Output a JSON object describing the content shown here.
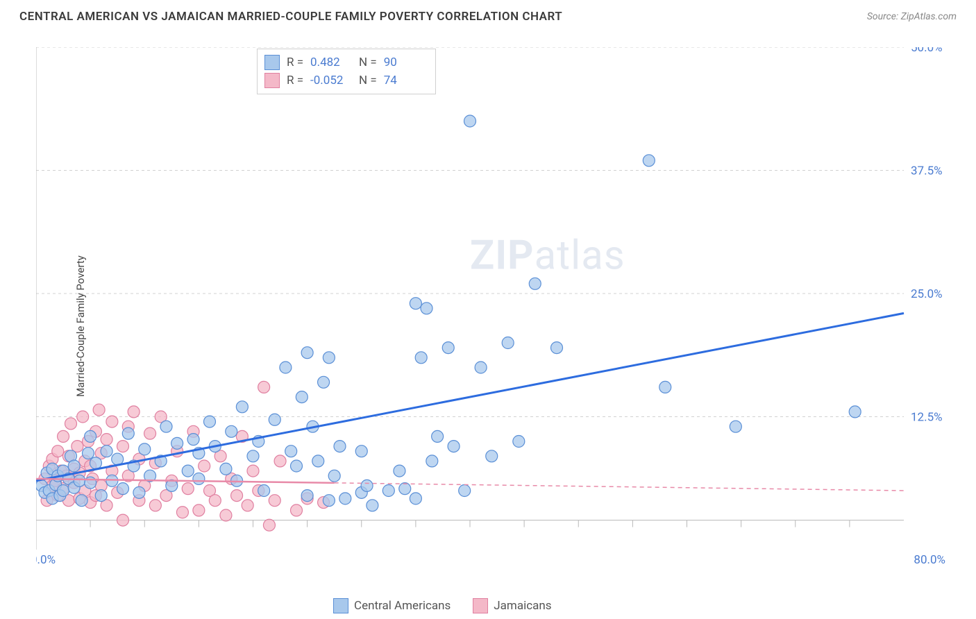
{
  "header": {
    "title": "CENTRAL AMERICAN VS JAMAICAN MARRIED-COUPLE FAMILY POVERTY CORRELATION CHART",
    "source_prefix": "Source: ",
    "source_name": "ZipAtlas.com"
  },
  "chart": {
    "type": "scatter",
    "ylabel": "Married-Couple Family Poverty",
    "xlim": [
      0,
      80
    ],
    "ylim": [
      0,
      50
    ],
    "x_axis_baseline": 2.0,
    "y_gridlines": [
      12.5,
      25.0,
      37.5,
      50.0
    ],
    "y_tick_labels": [
      "12.5%",
      "25.0%",
      "37.5%",
      "50.0%"
    ],
    "x_tick_positions": [
      5,
      10,
      15,
      20,
      25,
      30,
      35,
      40,
      45,
      50,
      55,
      60,
      65,
      70,
      75
    ],
    "x_left_label": "0.0%",
    "x_right_label": "80.0%",
    "background_color": "#ffffff",
    "grid_color": "#d0d0d0",
    "axis_color": "#b8b8b8",
    "label_color": "#4a7bd0",
    "marker_radius": 8.5,
    "watermark_zip": "ZIP",
    "watermark_atlas": "atlas",
    "series": {
      "central_americans": {
        "label": "Central Americans",
        "fill": "#a8c8ec",
        "stroke": "#5a8fd6",
        "r_value": "0.482",
        "n_value": "90",
        "trend_color": "#2d6cdf",
        "trend_start": [
          0,
          6.0
        ],
        "trend_end": [
          80,
          23.0
        ],
        "points": [
          [
            0.5,
            5.5
          ],
          [
            0.8,
            4.8
          ],
          [
            1.0,
            6.8
          ],
          [
            1.2,
            5.0
          ],
          [
            1.5,
            7.2
          ],
          [
            1.5,
            4.2
          ],
          [
            1.8,
            5.6
          ],
          [
            2.0,
            6.5
          ],
          [
            2.2,
            4.5
          ],
          [
            2.5,
            7.0
          ],
          [
            2.5,
            5.0
          ],
          [
            3.0,
            6.2
          ],
          [
            3.2,
            8.5
          ],
          [
            3.5,
            5.3
          ],
          [
            3.5,
            7.5
          ],
          [
            4.0,
            6.0
          ],
          [
            4.2,
            4.0
          ],
          [
            4.8,
            8.8
          ],
          [
            5.0,
            5.8
          ],
          [
            5.0,
            10.5
          ],
          [
            5.5,
            7.8
          ],
          [
            6.0,
            4.5
          ],
          [
            6.5,
            9.0
          ],
          [
            7.0,
            6.0
          ],
          [
            7.5,
            8.2
          ],
          [
            8.0,
            5.2
          ],
          [
            8.5,
            10.8
          ],
          [
            9.0,
            7.5
          ],
          [
            9.5,
            4.8
          ],
          [
            10.0,
            9.2
          ],
          [
            10.5,
            6.5
          ],
          [
            11.5,
            8.0
          ],
          [
            12.0,
            11.5
          ],
          [
            12.5,
            5.5
          ],
          [
            13.0,
            9.8
          ],
          [
            14.0,
            7.0
          ],
          [
            14.5,
            10.2
          ],
          [
            15.0,
            6.2
          ],
          [
            15.0,
            8.8
          ],
          [
            16.0,
            12.0
          ],
          [
            16.5,
            9.5
          ],
          [
            17.5,
            7.2
          ],
          [
            18.0,
            11.0
          ],
          [
            18.5,
            6.0
          ],
          [
            19.0,
            13.5
          ],
          [
            20.0,
            8.5
          ],
          [
            20.5,
            10.0
          ],
          [
            21.0,
            5.0
          ],
          [
            22.0,
            12.2
          ],
          [
            23.0,
            17.5
          ],
          [
            23.5,
            9.0
          ],
          [
            24.0,
            7.5
          ],
          [
            24.5,
            14.5
          ],
          [
            25.0,
            19.0
          ],
          [
            25.5,
            11.5
          ],
          [
            25.0,
            4.5
          ],
          [
            26.0,
            8.0
          ],
          [
            26.5,
            16.0
          ],
          [
            27.0,
            18.5
          ],
          [
            27.0,
            4.0
          ],
          [
            27.5,
            6.5
          ],
          [
            28.0,
            9.5
          ],
          [
            28.5,
            4.2
          ],
          [
            30.0,
            4.8
          ],
          [
            30.0,
            9.0
          ],
          [
            30.5,
            5.5
          ],
          [
            31.0,
            3.5
          ],
          [
            32.5,
            5.0
          ],
          [
            33.5,
            7.0
          ],
          [
            34.0,
            5.2
          ],
          [
            35.0,
            24.0
          ],
          [
            35.0,
            4.2
          ],
          [
            35.5,
            18.5
          ],
          [
            36.0,
            23.5
          ],
          [
            36.5,
            8.0
          ],
          [
            37.0,
            10.5
          ],
          [
            38.0,
            19.5
          ],
          [
            38.5,
            9.5
          ],
          [
            39.5,
            5.0
          ],
          [
            40.0,
            42.5
          ],
          [
            41.0,
            17.5
          ],
          [
            42.0,
            8.5
          ],
          [
            43.5,
            20.0
          ],
          [
            44.5,
            10.0
          ],
          [
            46.0,
            26.0
          ],
          [
            48.0,
            19.5
          ],
          [
            56.5,
            38.5
          ],
          [
            58.0,
            15.5
          ],
          [
            64.5,
            11.5
          ],
          [
            75.5,
            13.0
          ]
        ]
      },
      "jamaicans": {
        "label": "Jamaicans",
        "fill": "#f4b8c8",
        "stroke": "#e07fa0",
        "r_value": "-0.052",
        "n_value": "74",
        "trend_color": "#e88aa8",
        "trend_start": [
          0,
          6.2
        ],
        "trend_solid_end_x": 27.5,
        "trend_end": [
          80,
          5.0
        ],
        "points": [
          [
            0.8,
            6.2
          ],
          [
            1.0,
            4.0
          ],
          [
            1.2,
            7.5
          ],
          [
            1.5,
            5.5
          ],
          [
            1.5,
            8.2
          ],
          [
            1.8,
            6.0
          ],
          [
            2.0,
            4.5
          ],
          [
            2.0,
            9.0
          ],
          [
            2.3,
            7.0
          ],
          [
            2.5,
            5.2
          ],
          [
            2.5,
            10.5
          ],
          [
            2.8,
            6.5
          ],
          [
            3.0,
            4.0
          ],
          [
            3.0,
            8.5
          ],
          [
            3.2,
            11.8
          ],
          [
            3.5,
            5.8
          ],
          [
            3.5,
            7.2
          ],
          [
            3.8,
            9.5
          ],
          [
            4.0,
            4.2
          ],
          [
            4.0,
            6.8
          ],
          [
            4.3,
            12.5
          ],
          [
            4.5,
            5.0
          ],
          [
            4.5,
            8.0
          ],
          [
            4.8,
            10.0
          ],
          [
            5.0,
            3.8
          ],
          [
            5.0,
            7.5
          ],
          [
            5.2,
            6.2
          ],
          [
            5.5,
            11.0
          ],
          [
            5.5,
            4.5
          ],
          [
            5.8,
            13.2
          ],
          [
            6.0,
            8.8
          ],
          [
            6.0,
            5.5
          ],
          [
            6.5,
            3.5
          ],
          [
            6.5,
            10.2
          ],
          [
            7.0,
            7.0
          ],
          [
            7.0,
            12.0
          ],
          [
            7.5,
            4.8
          ],
          [
            8.0,
            9.5
          ],
          [
            8.0,
            2.0
          ],
          [
            8.5,
            6.5
          ],
          [
            8.5,
            11.5
          ],
          [
            9.0,
            13.0
          ],
          [
            9.5,
            4.0
          ],
          [
            9.5,
            8.2
          ],
          [
            10.0,
            5.5
          ],
          [
            10.5,
            10.8
          ],
          [
            11.0,
            3.5
          ],
          [
            11.0,
            7.8
          ],
          [
            11.5,
            12.5
          ],
          [
            12.0,
            4.5
          ],
          [
            12.5,
            6.0
          ],
          [
            13.0,
            9.0
          ],
          [
            13.5,
            2.8
          ],
          [
            14.0,
            5.2
          ],
          [
            14.5,
            11.0
          ],
          [
            15.0,
            3.0
          ],
          [
            15.5,
            7.5
          ],
          [
            16.0,
            5.0
          ],
          [
            16.5,
            4.0
          ],
          [
            17.0,
            8.5
          ],
          [
            17.5,
            2.5
          ],
          [
            18.0,
            6.2
          ],
          [
            18.5,
            4.5
          ],
          [
            19.0,
            10.5
          ],
          [
            19.5,
            3.5
          ],
          [
            20.0,
            7.0
          ],
          [
            20.5,
            5.0
          ],
          [
            21.0,
            15.5
          ],
          [
            21.5,
            1.5
          ],
          [
            22.0,
            4.0
          ],
          [
            22.5,
            8.0
          ],
          [
            24.0,
            3.0
          ],
          [
            25.0,
            4.2
          ],
          [
            26.5,
            3.8
          ]
        ]
      }
    },
    "legend_top": {
      "r_label": "R =",
      "n_label": "N ="
    },
    "legend_bottom": {
      "ca_label": "Central Americans",
      "j_label": "Jamaicans"
    }
  }
}
